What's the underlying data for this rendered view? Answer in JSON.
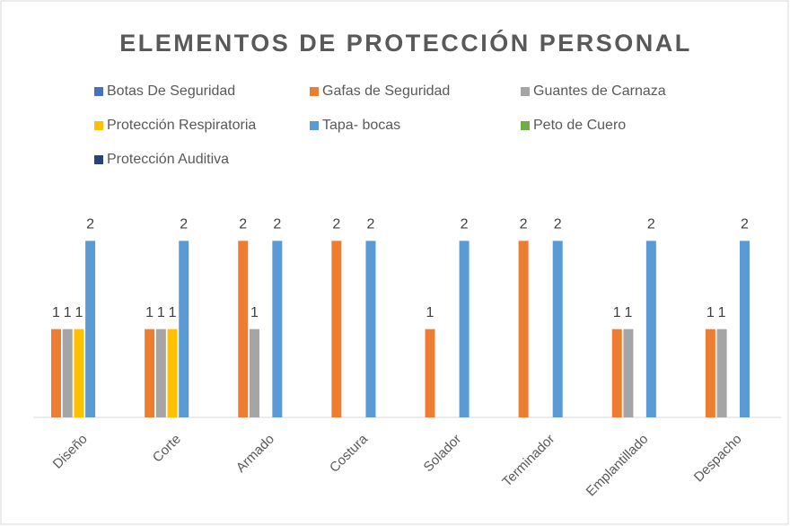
{
  "chart_data": {
    "type": "bar",
    "title": "ELEMENTOS DE PROTECCIÓN PERSONAL",
    "categories": [
      "Diseño",
      "Corte",
      "Armado",
      "Costura",
      "Solador",
      "Terminador",
      "Emplantillado",
      "Despacho"
    ],
    "series": [
      {
        "name": "Botas De Seguridad",
        "color": "#4472c4",
        "values": [
          null,
          null,
          null,
          null,
          null,
          null,
          null,
          null
        ]
      },
      {
        "name": "Gafas de Seguridad",
        "color": "#ed7d31",
        "values": [
          1,
          1,
          2,
          2,
          1,
          2,
          1,
          1
        ]
      },
      {
        "name": "Guantes de Carnaza",
        "color": "#a5a5a5",
        "values": [
          1,
          1,
          1,
          null,
          null,
          null,
          1,
          1
        ]
      },
      {
        "name": "Protección Respiratoria",
        "color": "#ffc000",
        "values": [
          1,
          1,
          null,
          null,
          null,
          null,
          null,
          null
        ]
      },
      {
        "name": "Tapa- bocas",
        "color": "#5b9bd5",
        "values": [
          2,
          2,
          2,
          2,
          2,
          2,
          2,
          2
        ]
      },
      {
        "name": "Peto de Cuero",
        "color": "#70ad47",
        "values": [
          null,
          null,
          null,
          null,
          null,
          null,
          null,
          null
        ]
      },
      {
        "name": "Protección Auditiva",
        "color": "#264478",
        "values": [
          null,
          null,
          null,
          null,
          null,
          null,
          null,
          null
        ]
      }
    ],
    "ylim": [
      0,
      2.4
    ],
    "legend": "top"
  }
}
